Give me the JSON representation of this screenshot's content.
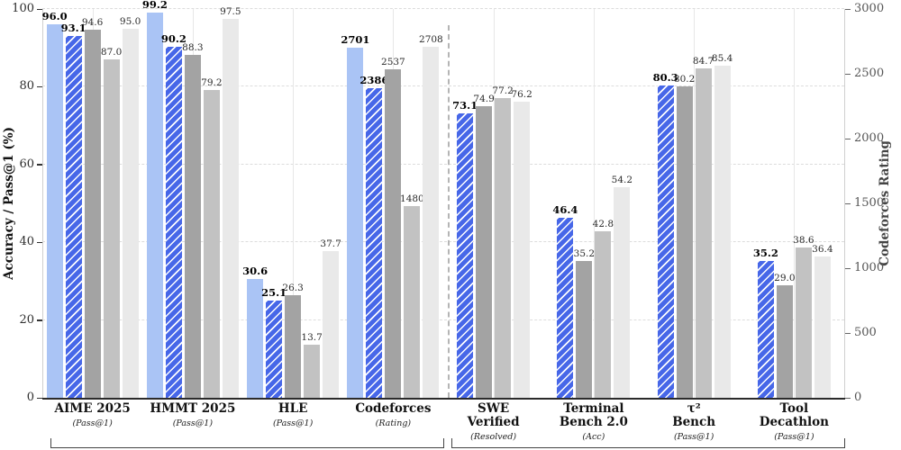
{
  "chart_data": {
    "type": "bar",
    "title": "",
    "left_axis": {
      "label": "Accuracy / Pass@1 (%)",
      "ticks": [
        0,
        20,
        40,
        60,
        80,
        100
      ],
      "tick_labels": [
        "0",
        "20",
        "40",
        "60",
        "80",
        "100"
      ],
      "lim": [
        0,
        100
      ],
      "grid": "dashed horizontal at each tick"
    },
    "right_axis": {
      "label": "Codeforces Rating",
      "ticks": [
        0,
        500,
        1000,
        1500,
        2000,
        2500,
        3000
      ],
      "tick_labels": [
        "0",
        "500",
        "1000",
        "1500",
        "2000",
        "2500",
        "3000"
      ],
      "lim": [
        0,
        3000
      ]
    },
    "legend": "none visible",
    "bar_style_colors": {
      "solid_blue": "#aac4f5",
      "hatched_blue": "#4767e8",
      "hatch_pattern": "white / diagonal stripes",
      "dark_gray": "#a3a3a3",
      "mid_gray": "#c2c2c2",
      "light_gray": "#e9e9e9"
    },
    "separator_after_group": 3,
    "groups": [
      {
        "name_lines": [
          "AIME 2025"
        ],
        "metric": "(Pass@1)",
        "axis": "left",
        "bars": [
          {
            "style": "solid_blue",
            "value": 96.0,
            "label": "96.0",
            "bold": true
          },
          {
            "style": "hatched_blue",
            "value": 93.1,
            "label": "93.1",
            "bold": true
          },
          {
            "style": "dark_gray",
            "value": 94.6,
            "label": "94.6",
            "bold": false
          },
          {
            "style": "mid_gray",
            "value": 87.0,
            "label": "87.0",
            "bold": false
          },
          {
            "style": "light_gray",
            "value": 95.0,
            "label": "95.0",
            "bold": false
          }
        ]
      },
      {
        "name_lines": [
          "HMMT 2025"
        ],
        "metric": "(Pass@1)",
        "axis": "left",
        "bars": [
          {
            "style": "solid_blue",
            "value": 99.2,
            "label": "99.2",
            "bold": true
          },
          {
            "style": "hatched_blue",
            "value": 90.2,
            "label": "90.2",
            "bold": true
          },
          {
            "style": "dark_gray",
            "value": 88.3,
            "label": "88.3",
            "bold": false
          },
          {
            "style": "mid_gray",
            "value": 79.2,
            "label": "79.2",
            "bold": false
          },
          {
            "style": "light_gray",
            "value": 97.5,
            "label": "97.5",
            "bold": false
          }
        ]
      },
      {
        "name_lines": [
          "HLE"
        ],
        "metric": "(Pass@1)",
        "axis": "left",
        "bars": [
          {
            "style": "solid_blue",
            "value": 30.6,
            "label": "30.6",
            "bold": true
          },
          {
            "style": "hatched_blue",
            "value": 25.1,
            "label": "25.1",
            "bold": true
          },
          {
            "style": "dark_gray",
            "value": 26.3,
            "label": "26.3",
            "bold": false
          },
          {
            "style": "mid_gray",
            "value": 13.7,
            "label": "13.7",
            "bold": false
          },
          {
            "style": "light_gray",
            "value": 37.7,
            "label": "37.7",
            "bold": false
          }
        ]
      },
      {
        "name_lines": [
          "Codeforces"
        ],
        "metric": "(Rating)",
        "axis": "right",
        "bars": [
          {
            "style": "solid_blue",
            "value": 2701,
            "label": "2701",
            "bold": true
          },
          {
            "style": "hatched_blue",
            "value": 2386,
            "label": "2386",
            "bold": true
          },
          {
            "style": "dark_gray",
            "value": 2537,
            "label": "2537",
            "bold": false
          },
          {
            "style": "mid_gray",
            "value": 1480,
            "label": "1480",
            "bold": false
          },
          {
            "style": "light_gray",
            "value": 2708,
            "label": "2708",
            "bold": false
          }
        ]
      },
      {
        "name_lines": [
          "SWE",
          "Verified"
        ],
        "metric": "(Resolved)",
        "axis": "left",
        "bars": [
          {
            "style": "hatched_blue",
            "value": 73.1,
            "label": "73.1",
            "bold": true
          },
          {
            "style": "dark_gray",
            "value": 74.9,
            "label": "74.9",
            "bold": false
          },
          {
            "style": "mid_gray",
            "value": 77.2,
            "label": "77.2",
            "bold": false
          },
          {
            "style": "light_gray",
            "value": 76.2,
            "label": "76.2",
            "bold": false
          }
        ]
      },
      {
        "name_lines": [
          "Terminal",
          "Bench 2.0"
        ],
        "metric": "(Acc)",
        "axis": "left",
        "bars": [
          {
            "style": "hatched_blue",
            "value": 46.4,
            "label": "46.4",
            "bold": true
          },
          {
            "style": "dark_gray",
            "value": 35.2,
            "label": "35.2",
            "bold": false
          },
          {
            "style": "mid_gray",
            "value": 42.8,
            "label": "42.8",
            "bold": false
          },
          {
            "style": "light_gray",
            "value": 54.2,
            "label": "54.2",
            "bold": false
          }
        ]
      },
      {
        "name_lines": [
          "τ²",
          "Bench"
        ],
        "metric": "(Pass@1)",
        "axis": "left",
        "bars": [
          {
            "style": "hatched_blue",
            "value": 80.3,
            "label": "80.3",
            "bold": true
          },
          {
            "style": "dark_gray",
            "value": 80.2,
            "label": "80.2",
            "bold": false
          },
          {
            "style": "mid_gray",
            "value": 84.7,
            "label": "84.7",
            "bold": false
          },
          {
            "style": "light_gray",
            "value": 85.4,
            "label": "85.4",
            "bold": false
          }
        ]
      },
      {
        "name_lines": [
          "Tool",
          "Decathlon"
        ],
        "metric": "(Pass@1)",
        "axis": "left",
        "bars": [
          {
            "style": "hatched_blue",
            "value": 35.2,
            "label": "35.2",
            "bold": true
          },
          {
            "style": "dark_gray",
            "value": 29.0,
            "label": "29.0",
            "bold": false
          },
          {
            "style": "mid_gray",
            "value": 38.6,
            "label": "38.6",
            "bold": false
          },
          {
            "style": "light_gray",
            "value": 36.4,
            "label": "36.4",
            "bold": false
          }
        ]
      }
    ],
    "brackets": [
      {
        "from_group": 0,
        "to_group": 3
      },
      {
        "from_group": 4,
        "to_group": 7
      }
    ]
  }
}
